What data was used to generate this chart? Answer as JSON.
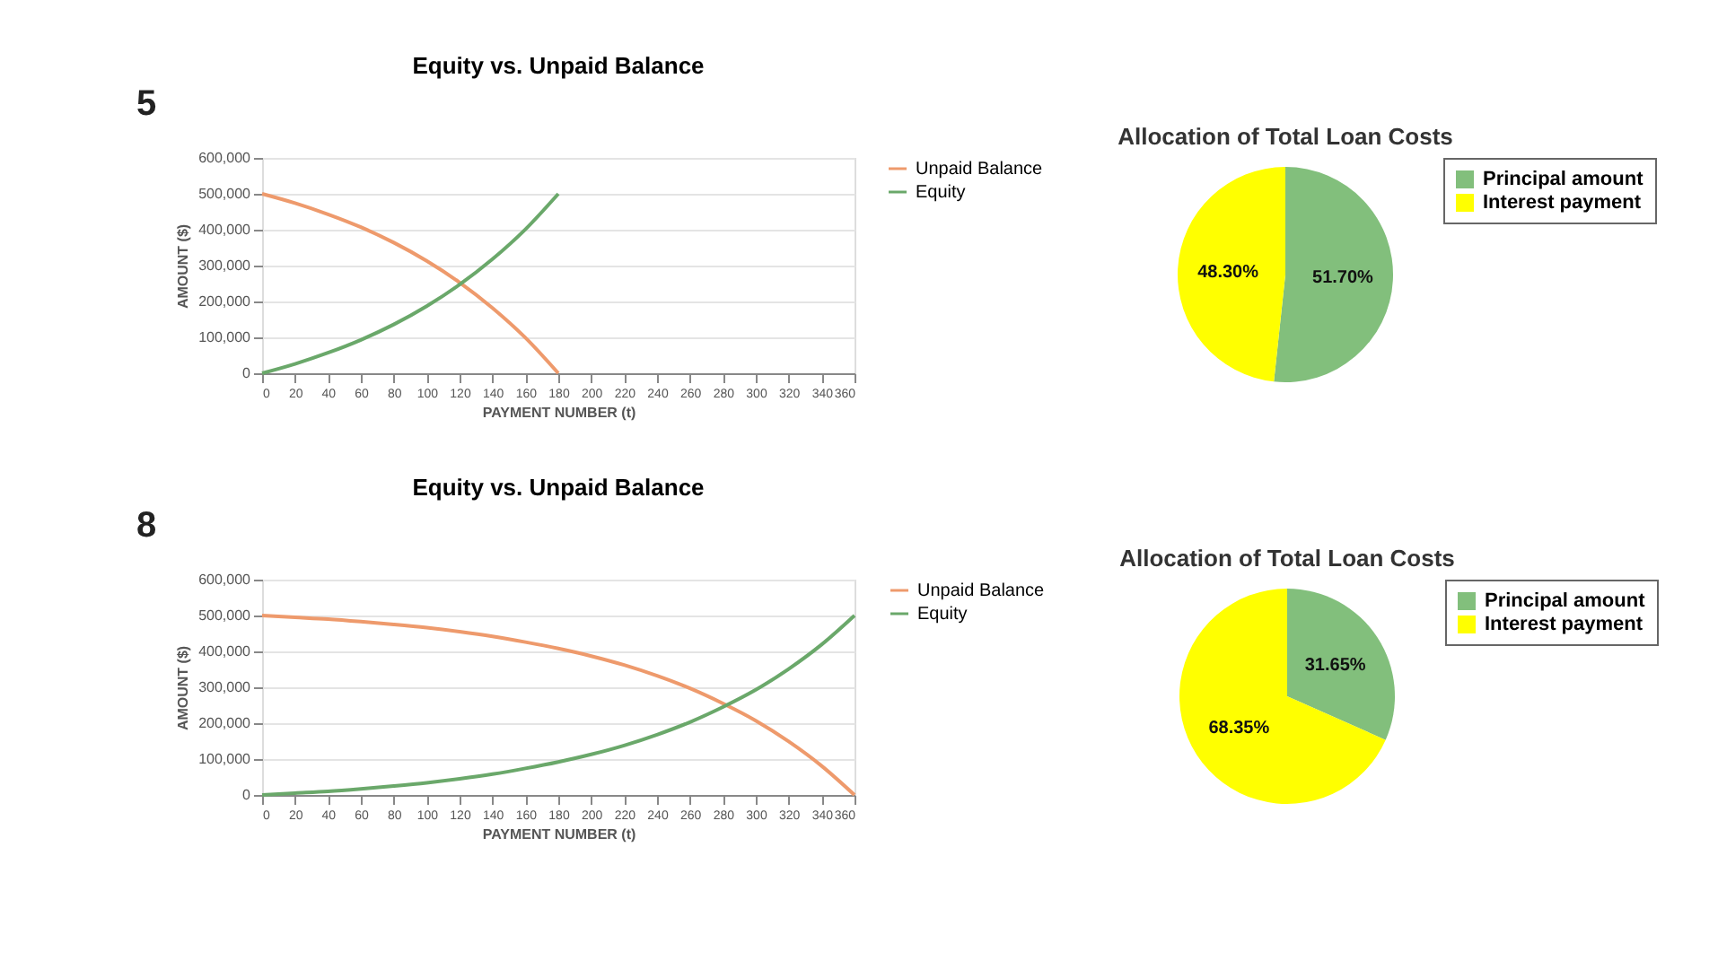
{
  "chart_data": [
    {
      "type": "line",
      "title": "Equity vs. Unpaid Balance",
      "xlabel": "PAYMENT NUMBER (t)",
      "ylabel": "AMOUNT ($)",
      "annotations": [
        "5"
      ],
      "x": [
        0,
        20,
        40,
        60,
        80,
        100,
        120,
        140,
        160,
        180
      ],
      "series": [
        {
          "name": "Unpaid Balance",
          "color": "#ee9a6c",
          "values": [
            500000,
            474000,
            443000,
            407000,
            364000,
            313000,
            253000,
            182000,
            99000,
            0
          ]
        },
        {
          "name": "Equity",
          "color": "#6aa86a",
          "values": [
            0,
            26000,
            57000,
            93000,
            136000,
            187000,
            247000,
            318000,
            401000,
            500000
          ]
        }
      ],
      "xlim": [
        0,
        360
      ],
      "xticks": [
        0,
        20,
        40,
        60,
        80,
        100,
        120,
        140,
        160,
        180,
        200,
        220,
        240,
        260,
        280,
        300,
        320,
        340,
        360
      ],
      "ylim": [
        0,
        600000
      ],
      "yticks": [
        0,
        {
          "value": 100000,
          "label": "100,000"
        },
        {
          "value": 200000,
          "label": "200,000"
        },
        {
          "value": 300000,
          "label": "300,000"
        },
        {
          "value": 400000,
          "label": "400,000"
        },
        {
          "value": 500000,
          "label": "500,000"
        },
        {
          "value": 600000,
          "label": "600,000"
        }
      ],
      "grid": "y",
      "legend": "right"
    },
    {
      "type": "pie",
      "title": "Allocation of Total Loan Costs",
      "categories": [
        "Principal amount",
        "Interest payment"
      ],
      "values": [
        51.7,
        48.3
      ],
      "colors": [
        "#82bf7c",
        "#ffff00"
      ],
      "value_labels": [
        "51.70%",
        "48.30%"
      ],
      "legend": "right"
    },
    {
      "type": "line",
      "title": "Equity vs. Unpaid Balance",
      "xlabel": "PAYMENT NUMBER (t)",
      "ylabel": "AMOUNT ($)",
      "annotations": [
        "8"
      ],
      "x": [
        0,
        20,
        40,
        60,
        80,
        100,
        120,
        140,
        160,
        180,
        200,
        220,
        240,
        260,
        280,
        300,
        320,
        340,
        360
      ],
      "series": [
        {
          "name": "Unpaid Balance",
          "color": "#ee9a6c",
          "values": [
            500000,
            495000,
            490000,
            483000,
            475000,
            466000,
            455000,
            442000,
            426000,
            408000,
            387000,
            362000,
            332000,
            297000,
            255000,
            207000,
            149000,
            81000,
            0
          ]
        },
        {
          "name": "Equity",
          "color": "#6aa86a",
          "values": [
            0,
            5000,
            10000,
            17000,
            25000,
            34000,
            45000,
            58000,
            74000,
            92000,
            113000,
            138000,
            168000,
            203000,
            245000,
            293000,
            351000,
            419000,
            500000
          ]
        }
      ],
      "xlim": [
        0,
        360
      ],
      "xticks": [
        0,
        20,
        40,
        60,
        80,
        100,
        120,
        140,
        160,
        180,
        200,
        220,
        240,
        260,
        280,
        300,
        320,
        340,
        360
      ],
      "ylim": [
        0,
        600000
      ],
      "yticks": [
        0,
        {
          "value": 100000,
          "label": "100,000"
        },
        {
          "value": 200000,
          "label": "200,000"
        },
        {
          "value": 300000,
          "label": "300,000"
        },
        {
          "value": 400000,
          "label": "400,000"
        },
        {
          "value": 500000,
          "label": "500,000"
        },
        {
          "value": 600000,
          "label": "600,000"
        }
      ],
      "grid": "y",
      "legend": "right"
    },
    {
      "type": "pie",
      "title": "Allocation of Total Loan Costs",
      "categories": [
        "Principal amount",
        "Interest payment"
      ],
      "values": [
        31.65,
        68.35
      ],
      "colors": [
        "#82bf7c",
        "#ffff00"
      ],
      "value_labels": [
        "31.65%",
        "68.35%"
      ],
      "legend": "right"
    }
  ]
}
